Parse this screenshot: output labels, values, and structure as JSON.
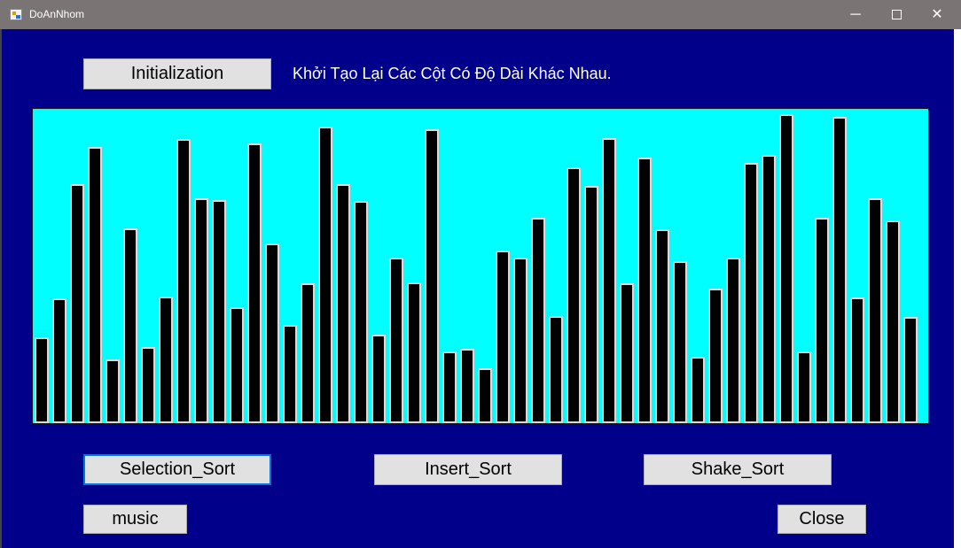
{
  "window": {
    "title": "DoAnNhom",
    "minimize_glyph": "─",
    "close_glyph": "✕"
  },
  "controls": {
    "init_label": "Initialization",
    "description": "Khởi Tạo Lại Các Cột Có Độ Dài Khác Nhau.",
    "selection_label": "Selection_Sort",
    "insert_label": "Insert_Sort",
    "shake_label": "Shake_Sort",
    "music_label": "music",
    "close_label": "Close"
  },
  "colors": {
    "form_background": "#00008b",
    "panel_background": "#00ffff",
    "bar_fill": "#000000",
    "bar_border": "#d9d9d9"
  },
  "bars": {
    "count": 50,
    "heights": [
      97,
      141,
      270,
      312,
      72,
      220,
      86,
      143,
      321,
      254,
      252,
      131,
      316,
      203,
      111,
      158,
      335,
      270,
      251,
      100,
      187,
      159,
      332,
      81,
      84,
      62,
      195,
      187,
      232,
      121,
      289,
      268,
      322,
      158,
      300,
      219,
      183,
      75,
      152,
      187,
      294,
      303,
      349,
      81,
      232,
      346,
      142,
      254,
      229,
      120
    ]
  }
}
